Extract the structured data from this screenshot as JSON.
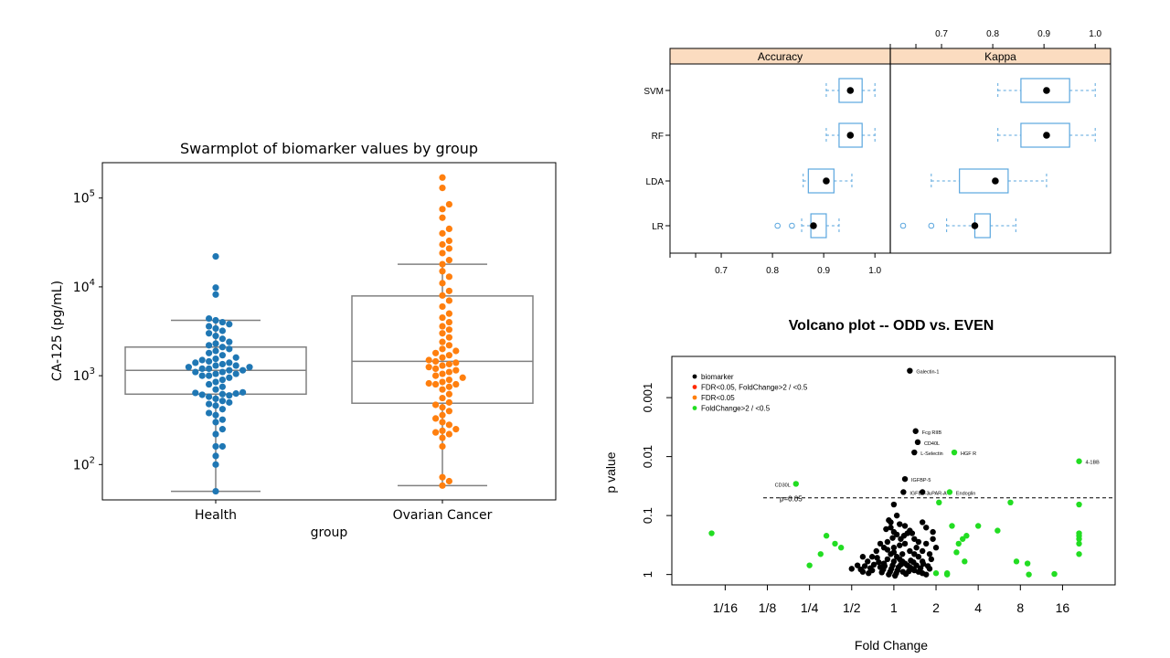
{
  "chart_data": [
    {
      "type": "swarm",
      "title": "Swarmplot of biomarker values by group",
      "xlabel": "group",
      "ylabel": "CA-125 (pg/mL)",
      "yscale": "log",
      "ylim": [
        40,
        250000
      ],
      "yticks": [
        {
          "value": 100,
          "base": "10",
          "exp": "2"
        },
        {
          "value": 1000,
          "base": "10",
          "exp": "3"
        },
        {
          "value": 10000,
          "base": "10",
          "exp": "4"
        },
        {
          "value": 100000,
          "base": "10",
          "exp": "5"
        }
      ],
      "categories": [
        "Health",
        "Ovarian Cancer"
      ],
      "colors": [
        "#1f77b4",
        "#ff7f0e"
      ],
      "box_color": "#808080",
      "boxes": [
        {
          "whisker_low": 50,
          "q1": 620,
          "median": 1150,
          "q3": 2100,
          "whisker_high": 4200
        },
        {
          "whisker_low": 58,
          "q1": 490,
          "median": 1450,
          "q3": 7900,
          "whisker_high": 18000
        }
      ],
      "points": [
        [
          50,
          100,
          125,
          160,
          160,
          220,
          250,
          300,
          320,
          360,
          380,
          420,
          460,
          480,
          500,
          520,
          550,
          580,
          600,
          610,
          620,
          630,
          640,
          650,
          700,
          750,
          800,
          850,
          900,
          950,
          1000,
          1000,
          1050,
          1050,
          1100,
          1100,
          1150,
          1150,
          1200,
          1200,
          1250,
          1250,
          1300,
          1300,
          1350,
          1400,
          1400,
          1450,
          1500,
          1550,
          1600,
          1700,
          1800,
          1900,
          2000,
          2100,
          2200,
          2300,
          2400,
          2600,
          2800,
          3000,
          3200,
          3400,
          3600,
          3800,
          4000,
          4200,
          4400,
          8200,
          9800,
          22000
        ],
        [
          58,
          65,
          72,
          160,
          200,
          220,
          230,
          240,
          250,
          280,
          300,
          330,
          360,
          400,
          440,
          470,
          500,
          560,
          620,
          700,
          750,
          800,
          800,
          820,
          850,
          900,
          950,
          1000,
          1050,
          1100,
          1150,
          1200,
          1250,
          1300,
          1350,
          1400,
          1450,
          1500,
          1600,
          1700,
          1800,
          1900,
          2000,
          2200,
          2400,
          2700,
          3000,
          3300,
          3600,
          4000,
          4500,
          5000,
          6000,
          7000,
          8000,
          9000,
          11000,
          13000,
          15000,
          18000,
          20000,
          24000,
          27000,
          30000,
          33000,
          40000,
          45000,
          60000,
          75000,
          85000,
          130000,
          170000
        ]
      ]
    },
    {
      "type": "box",
      "panels": [
        "Accuracy",
        "Kappa"
      ],
      "categories": [
        "SVM",
        "RF",
        "LDA",
        "LR"
      ],
      "xlim": [
        0.6,
        1.03
      ],
      "xticks": [
        "0.7",
        "0.8",
        "0.9",
        "1.0"
      ],
      "box_color": "#5aa6de",
      "strip_color": "#fbdcc0",
      "series": [
        {
          "panel": "Accuracy",
          "boxes": [
            {
              "name": "SVM",
              "min": 0.905,
              "q1": 0.93,
              "median": 0.952,
              "q3": 0.975,
              "max": 1.0,
              "outliers": []
            },
            {
              "name": "RF",
              "min": 0.905,
              "q1": 0.93,
              "median": 0.952,
              "q3": 0.975,
              "max": 1.0,
              "outliers": []
            },
            {
              "name": "LDA",
              "min": 0.86,
              "q1": 0.87,
              "median": 0.905,
              "q3": 0.92,
              "max": 0.955,
              "outliers": []
            },
            {
              "name": "LR",
              "min": 0.857,
              "q1": 0.875,
              "median": 0.88,
              "q3": 0.905,
              "max": 0.93,
              "outliers": [
                0.81,
                0.838
              ]
            }
          ]
        },
        {
          "panel": "Kappa",
          "boxes": [
            {
              "name": "SVM",
              "min": 0.81,
              "q1": 0.855,
              "median": 0.905,
              "q3": 0.95,
              "max": 1.0,
              "outliers": []
            },
            {
              "name": "RF",
              "min": 0.81,
              "q1": 0.855,
              "median": 0.905,
              "q3": 0.95,
              "max": 1.0,
              "outliers": []
            },
            {
              "name": "LDA",
              "min": 0.68,
              "q1": 0.735,
              "median": 0.805,
              "q3": 0.83,
              "max": 0.905,
              "outliers": []
            },
            {
              "name": "LR",
              "min": 0.71,
              "q1": 0.765,
              "median": 0.765,
              "q3": 0.795,
              "max": 0.845,
              "outliers": [
                0.625,
                0.68
              ]
            }
          ]
        }
      ]
    },
    {
      "type": "scatter",
      "title": "Volcano plot -- ODD vs. EVEN",
      "xlabel": "Fold Change",
      "ylabel": "p value",
      "xscale": "log2",
      "yscale": "log10-reversed",
      "xlim": [
        0.026,
        38
      ],
      "ylim": [
        1.5,
        0.0002
      ],
      "xticks": [
        {
          "value": 0.0625,
          "label": "1/16"
        },
        {
          "value": 0.125,
          "label": "1/8"
        },
        {
          "value": 0.25,
          "label": "1/4"
        },
        {
          "value": 0.5,
          "label": "1/2"
        },
        {
          "value": 1,
          "label": "1"
        },
        {
          "value": 2,
          "label": "2"
        },
        {
          "value": 4,
          "label": "4"
        },
        {
          "value": 8,
          "label": "8"
        },
        {
          "value": 16,
          "label": "16"
        }
      ],
      "yticks": [
        {
          "value": 0.001,
          "label": "0.001"
        },
        {
          "value": 0.01,
          "label": "0.01"
        },
        {
          "value": 0.1,
          "label": "0.1"
        },
        {
          "value": 1,
          "label": "1"
        }
      ],
      "threshold": {
        "p": 0.05,
        "label": "p=0.05"
      },
      "legend": {
        "placement": "top-left",
        "entries": [
          {
            "label": "biomarker",
            "color": "#000000"
          },
          {
            "label": "FDR<0.05, FoldChange>2 / <0.5",
            "color": "#ff2a00"
          },
          {
            "label": "FDR<0.05",
            "color": "#ff7f0e"
          },
          {
            "label": "FoldChange>2 / <0.5",
            "color": "#22dd22"
          }
        ]
      },
      "labeled_points": [
        {
          "label": "Galectin-1",
          "fc": 1.3,
          "p": 0.00035,
          "group": "biomarker"
        },
        {
          "label": "Fcg RIIB",
          "fc": 1.43,
          "p": 0.0037,
          "group": "biomarker"
        },
        {
          "label": "CD40L",
          "fc": 1.48,
          "p": 0.0057,
          "group": "biomarker"
        },
        {
          "label": "L-Selectin",
          "fc": 1.4,
          "p": 0.0085,
          "group": "biomarker"
        },
        {
          "label": "HGF R",
          "fc": 2.7,
          "p": 0.0085,
          "group": "FoldChange>2 / <0.5"
        },
        {
          "label": "4-1BB",
          "fc": 21.0,
          "p": 0.012,
          "group": "FoldChange>2 / <0.5"
        },
        {
          "label": "IGFBP-5",
          "fc": 1.2,
          "p": 0.024,
          "group": "biomarker"
        },
        {
          "label": "CD30L",
          "fc": 0.2,
          "p": 0.029,
          "group": "FoldChange>2 / <0.5"
        },
        {
          "label": "IGFBP-3",
          "fc": 1.17,
          "p": 0.04,
          "group": "biomarker"
        },
        {
          "label": "uPAR-A",
          "fc": 1.6,
          "p": 0.04,
          "group": "biomarker"
        },
        {
          "label": "Endoglin",
          "fc": 2.5,
          "p": 0.04,
          "group": "FoldChange>2 / <0.5"
        }
      ],
      "points": [
        {
          "group": "biomarker",
          "xy": [
            [
              1.0,
              0.065
            ],
            [
              1.05,
              0.1
            ],
            [
              0.92,
              0.12
            ],
            [
              0.95,
              0.13
            ],
            [
              1.1,
              0.14
            ],
            [
              0.88,
              0.17
            ],
            [
              1.0,
              0.19
            ],
            [
              1.05,
              0.21
            ],
            [
              1.2,
              0.15
            ],
            [
              1.3,
              0.18
            ],
            [
              1.35,
              0.2
            ],
            [
              1.6,
              0.13
            ],
            [
              1.7,
              0.16
            ],
            [
              1.9,
              0.19
            ],
            [
              1.4,
              0.25
            ],
            [
              1.5,
              0.28
            ],
            [
              1.2,
              0.3
            ],
            [
              1.1,
              0.32
            ],
            [
              1.0,
              0.35
            ],
            [
              0.9,
              0.38
            ],
            [
              0.8,
              0.3
            ],
            [
              0.75,
              0.4
            ],
            [
              0.7,
              0.5
            ],
            [
              0.65,
              0.6
            ],
            [
              0.6,
              0.5
            ],
            [
              0.55,
              0.7
            ],
            [
              0.5,
              0.8
            ],
            [
              0.6,
              0.9
            ],
            [
              0.7,
              0.85
            ],
            [
              0.8,
              0.75
            ],
            [
              0.85,
              0.65
            ],
            [
              0.9,
              0.55
            ],
            [
              0.95,
              0.45
            ],
            [
              1.0,
              0.42
            ],
            [
              1.05,
              0.5
            ],
            [
              1.1,
              0.55
            ],
            [
              1.15,
              0.6
            ],
            [
              1.2,
              0.65
            ],
            [
              1.25,
              0.7
            ],
            [
              1.3,
              0.75
            ],
            [
              1.35,
              0.8
            ],
            [
              1.4,
              0.85
            ],
            [
              1.5,
              0.9
            ],
            [
              1.6,
              0.95
            ],
            [
              1.7,
              1.0
            ],
            [
              1.8,
              0.8
            ],
            [
              1.6,
              0.6
            ],
            [
              1.5,
              0.5
            ],
            [
              1.4,
              0.45
            ],
            [
              1.3,
              0.4
            ],
            [
              1.8,
              0.45
            ],
            [
              1.7,
              0.3
            ],
            [
              1.9,
              0.25
            ],
            [
              2.0,
              0.35
            ],
            [
              1.85,
              0.55
            ],
            [
              1.0,
              0.6
            ],
            [
              0.98,
              0.7
            ],
            [
              0.96,
              0.8
            ],
            [
              0.94,
              0.9
            ],
            [
              0.92,
              1.0
            ],
            [
              1.02,
              1.05
            ],
            [
              1.04,
              0.95
            ],
            [
              1.06,
              0.85
            ],
            [
              1.08,
              0.75
            ],
            [
              1.12,
              0.68
            ],
            [
              0.86,
              0.72
            ],
            [
              0.84,
              0.82
            ],
            [
              0.82,
              0.92
            ],
            [
              0.78,
              0.62
            ],
            [
              0.76,
              0.52
            ],
            [
              0.72,
              0.68
            ],
            [
              0.68,
              0.78
            ],
            [
              0.62,
              0.72
            ],
            [
              0.58,
              0.82
            ],
            [
              0.66,
              0.95
            ],
            [
              1.16,
              0.9
            ],
            [
              1.22,
              0.98
            ],
            [
              1.28,
              0.88
            ],
            [
              1.32,
              0.58
            ],
            [
              1.38,
              0.62
            ],
            [
              1.45,
              0.7
            ],
            [
              1.55,
              0.78
            ],
            [
              1.62,
              0.66
            ],
            [
              1.75,
              0.72
            ],
            [
              1.12,
              0.25
            ],
            [
              1.18,
              0.22
            ],
            [
              0.98,
              0.24
            ],
            [
              1.25,
              0.2
            ],
            [
              0.95,
              0.16
            ],
            [
              1.45,
              0.35
            ],
            [
              1.6,
              0.4
            ],
            [
              0.9,
              0.28
            ],
            [
              0.85,
              0.35
            ],
            [
              1.15,
              0.45
            ]
          ]
        },
        {
          "group": "FoldChange>2 / <0.5",
          "xy": [
            [
              0.05,
              0.2
            ],
            [
              0.25,
              0.7
            ],
            [
              0.33,
              0.22
            ],
            [
              0.3,
              0.45
            ],
            [
              0.38,
              0.3
            ],
            [
              0.42,
              0.35
            ],
            [
              2.1,
              0.06
            ],
            [
              2.0,
              0.95
            ],
            [
              2.4,
              1.0
            ],
            [
              2.6,
              0.15
            ],
            [
              2.8,
              0.42
            ],
            [
              3.1,
              0.25
            ],
            [
              3.2,
              0.6
            ],
            [
              2.9,
              0.3
            ],
            [
              3.3,
              0.22
            ],
            [
              4.0,
              0.15
            ],
            [
              5.5,
              0.18
            ],
            [
              6.8,
              0.06
            ],
            [
              7.5,
              0.6
            ],
            [
              9.0,
              0.65
            ],
            [
              9.2,
              1.0
            ],
            [
              14.0,
              0.98
            ],
            [
              21.0,
              0.065
            ],
            [
              21.0,
              0.2
            ],
            [
              21.0,
              0.22
            ],
            [
              21.0,
              0.25
            ],
            [
              21.0,
              0.3
            ],
            [
              21.0,
              0.45
            ],
            [
              2.4,
              0.95
            ]
          ]
        }
      ]
    }
  ]
}
